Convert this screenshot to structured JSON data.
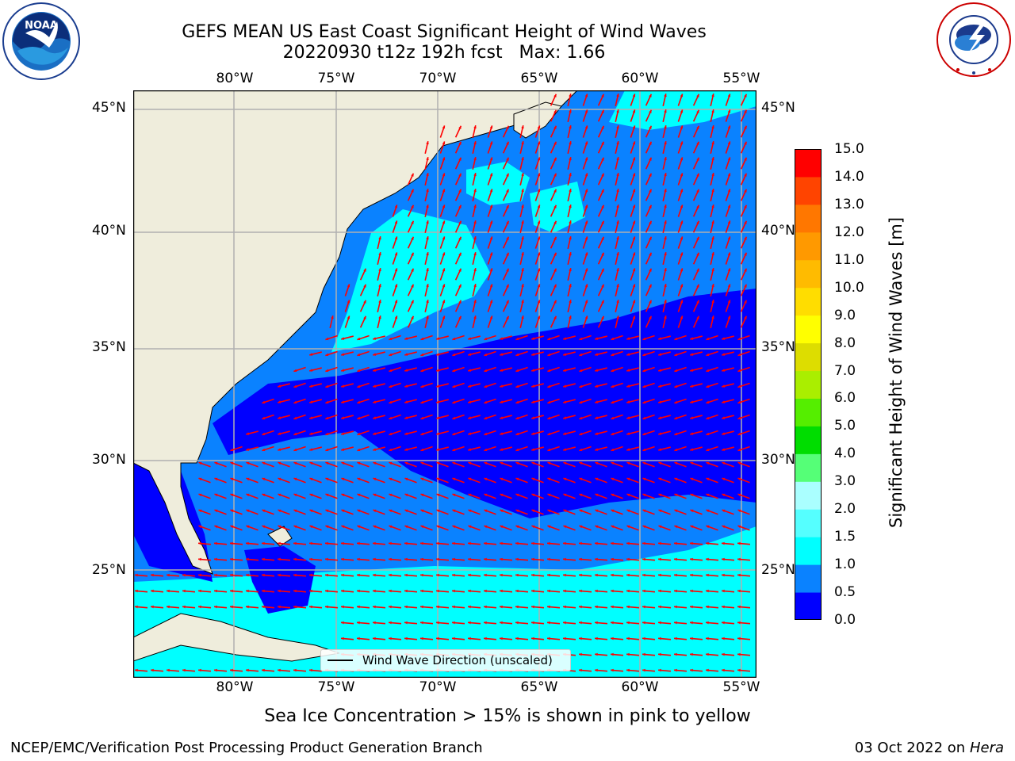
{
  "title": {
    "line1": "GEFS MEAN US East Coast Significant Height of Wind Waves",
    "line2": "20220930 t12z 192h fcst   Max: 1.66"
  },
  "logos": {
    "left": "noaa-logo",
    "right": "national-weather-service-logo",
    "left_text": "NATIONAL OCEANIC AND ATMOSPHERIC ADMINISTRATION · U.S. DEPARTMENT OF COMMERCE",
    "right_text": "NATIONAL WEATHER SERVICE"
  },
  "map": {
    "lon_labels": [
      "80°W",
      "75°W",
      "70°W",
      "65°W",
      "60°W",
      "55°W"
    ],
    "lat_labels": [
      "45°N",
      "40°N",
      "35°N",
      "30°N",
      "25°N"
    ],
    "extent": {
      "lon": [
        -85,
        -54.5
      ],
      "lat": [
        20.5,
        46.5
      ]
    },
    "gridlines": true,
    "land_color": "#efeddc",
    "arrow_color": "#ff0000",
    "legend_label": "Wind Wave Direction (unscaled)",
    "legend_placement": "bottom-center"
  },
  "colorbar": {
    "label": "Significant Height of Wind Waves [m]",
    "ticks": [
      "0.0",
      "0.5",
      "1.0",
      "1.5",
      "2.0",
      "3.0",
      "4.0",
      "5.0",
      "6.0",
      "7.0",
      "8.0",
      "9.0",
      "10.0",
      "11.0",
      "12.0",
      "13.0",
      "14.0",
      "15.0"
    ],
    "colors": [
      "#0000ff",
      "#0a82ff",
      "#00ffff",
      "#55ffff",
      "#aaffff",
      "#55ff77",
      "#00dd00",
      "#55ee00",
      "#aaee00",
      "#dddd00",
      "#ffff00",
      "#ffdd00",
      "#ffbb00",
      "#ff9900",
      "#ff7700",
      "#ff4400",
      "#ff0000"
    ]
  },
  "note": "Sea Ice Concentration > 15% is shown in pink to yellow",
  "footer": {
    "left": "NCEP/EMC/Verification Post Processing Product Generation Branch",
    "right_date": "03 Oct 2022 on",
    "right_host": "Hera"
  }
}
